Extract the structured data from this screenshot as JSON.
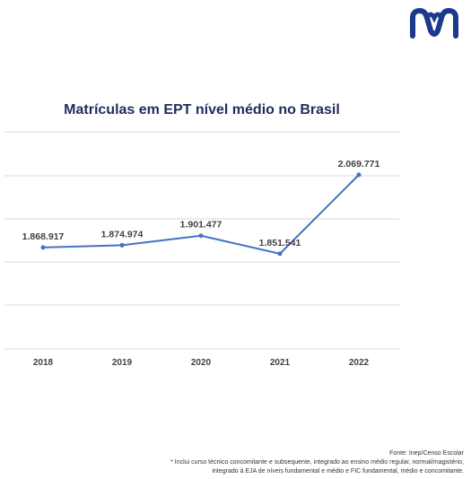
{
  "colors": {
    "title": "#1f2d5c",
    "line": "#4472c4",
    "grid": "#d9d9d9",
    "label": "#404040",
    "logo": "#1b3a8c"
  },
  "logo_icon": "brand-m-logo",
  "chart_data": {
    "type": "line",
    "title": "Matrículas em EPT nível médio no Brasil",
    "xlabel": "",
    "ylabel": "",
    "categories": [
      "2018",
      "2019",
      "2020",
      "2021",
      "2022"
    ],
    "series": [
      {
        "values": [
          1868917,
          1874974,
          1901477,
          1851541,
          2069771
        ]
      }
    ],
    "data_labels": [
      "1.868.917",
      "1.874.974",
      "1.901.477",
      "1.851.541",
      "2.069.771"
    ],
    "grid": true,
    "legend": "none"
  },
  "footer": {
    "source": "Fonte: Inep/Censo Escolar",
    "note_line1": "* Inclui curso técnico concomitante e subsequente, integrado ao ensino médio regular, normal/magistério,",
    "note_line2": "integrado à EJA de níveis fundamental e médio e FIC fundamental, médio e concomitante."
  }
}
